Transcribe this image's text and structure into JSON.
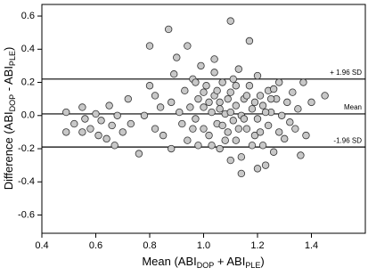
{
  "chart_data": {
    "type": "scatter",
    "x_label": [
      "Mean (ABI",
      "DOP",
      " + ABI",
      "PLE",
      ")"
    ],
    "y_label": [
      "Difference (ABI",
      "DOP",
      " - ABI",
      "PLE",
      ")"
    ],
    "xlim": [
      0.4,
      1.6
    ],
    "ylim": [
      -0.71,
      0.67
    ],
    "xticks": [
      0.4,
      0.6,
      0.8,
      {
        "value": 1,
        "label": "1.0"
      },
      1.2,
      1.4
    ],
    "yticks": [
      -0.6,
      -0.4,
      -0.2,
      {
        "value": 0,
        "label": "0.0"
      },
      0.2,
      0.4,
      0.6
    ],
    "reference_lines": [
      {
        "value": 0.22,
        "label": "+ 1.96 SD"
      },
      {
        "value": 0.01,
        "label": "Mean"
      },
      {
        "value": -0.19,
        "label": "-1.96 SD"
      }
    ],
    "color": "#c8c8c8",
    "x": [
      0.49,
      0.49,
      0.52,
      0.55,
      0.55,
      0.56,
      0.58,
      0.6,
      0.61,
      0.62,
      0.64,
      0.65,
      0.66,
      0.67,
      0.68,
      0.7,
      0.72,
      0.73,
      0.76,
      0.78,
      0.8,
      0.8,
      0.82,
      0.82,
      0.84,
      0.85,
      0.87,
      0.88,
      0.88,
      0.89,
      0.9,
      0.91,
      0.92,
      0.93,
      0.94,
      0.94,
      0.95,
      0.96,
      0.97,
      0.98,
      0.98,
      0.99,
      1.0,
      1.0,
      1.01,
      1.02,
      1.03,
      1.04,
      1.04,
      1.05,
      1.06,
      1.06,
      1.07,
      1.08,
      1.09,
      1.1,
      1.1,
      1.11,
      1.12,
      1.12,
      1.13,
      1.14,
      1.14,
      1.15,
      1.16,
      1.17,
      1.17,
      1.18,
      1.19,
      1.2,
      1.2,
      1.21,
      1.22,
      1.22,
      1.23,
      1.24,
      1.24,
      1.25,
      1.26,
      1.27,
      1.28,
      1.28,
      1.29,
      1.3,
      1.31,
      1.32,
      1.33,
      1.34,
      1.35,
      1.36,
      1.37,
      1.38,
      1.4,
      1.45,
      1.02,
      1.05,
      1.08,
      1.1,
      1.15,
      1.18,
      1.11,
      1.03,
      1.13,
      1.16,
      0.96,
      1.0,
      1.07,
      1.19,
      1.21,
      1.25,
      1.06,
      1.12,
      1.09,
      1.23,
      1.26,
      1.14,
      1.2,
      1.1,
      1.04,
      0.97
    ],
    "y": [
      0.02,
      -0.1,
      -0.05,
      0.05,
      -0.1,
      -0.02,
      -0.08,
      0.01,
      -0.12,
      -0.03,
      -0.14,
      0.06,
      -0.06,
      -0.18,
      0.0,
      -0.1,
      0.1,
      -0.05,
      -0.23,
      0.0,
      0.42,
      0.18,
      0.12,
      -0.08,
      0.05,
      -0.12,
      0.52,
      0.08,
      -0.2,
      0.25,
      0.35,
      0.02,
      -0.05,
      0.15,
      0.42,
      -0.15,
      0.05,
      0.22,
      -0.02,
      0.1,
      -0.18,
      0.3,
      0.05,
      -0.08,
      0.18,
      -0.12,
      0.02,
      0.34,
      0.12,
      -0.05,
      0.08,
      -0.2,
      0.2,
      0.01,
      -0.1,
      0.57,
      0.14,
      -0.03,
      0.06,
      -0.15,
      0.28,
      0.0,
      -0.25,
      0.1,
      -0.08,
      0.45,
      0.18,
      0.04,
      -0.12,
      0.24,
      -0.02,
      0.12,
      -0.18,
      0.06,
      -0.3,
      0.15,
      -0.06,
      0.02,
      -0.22,
      0.1,
      -0.1,
      0.2,
      0.0,
      -0.14,
      0.08,
      -0.04,
      0.14,
      -0.08,
      0.04,
      -0.24,
      0.2,
      -0.12,
      0.08,
      0.12,
      0.08,
      0.15,
      -0.15,
      0.02,
      -0.02,
      -0.18,
      0.22,
      -0.18,
      -0.08,
      0.12,
      -0.08,
      0.14,
      -0.06,
      0.08,
      -0.1,
      0.1,
      0.04,
      0.18,
      0.1,
      0.02,
      0.16,
      -0.35,
      -0.32,
      -0.27,
      0.26,
      0.2
    ]
  }
}
